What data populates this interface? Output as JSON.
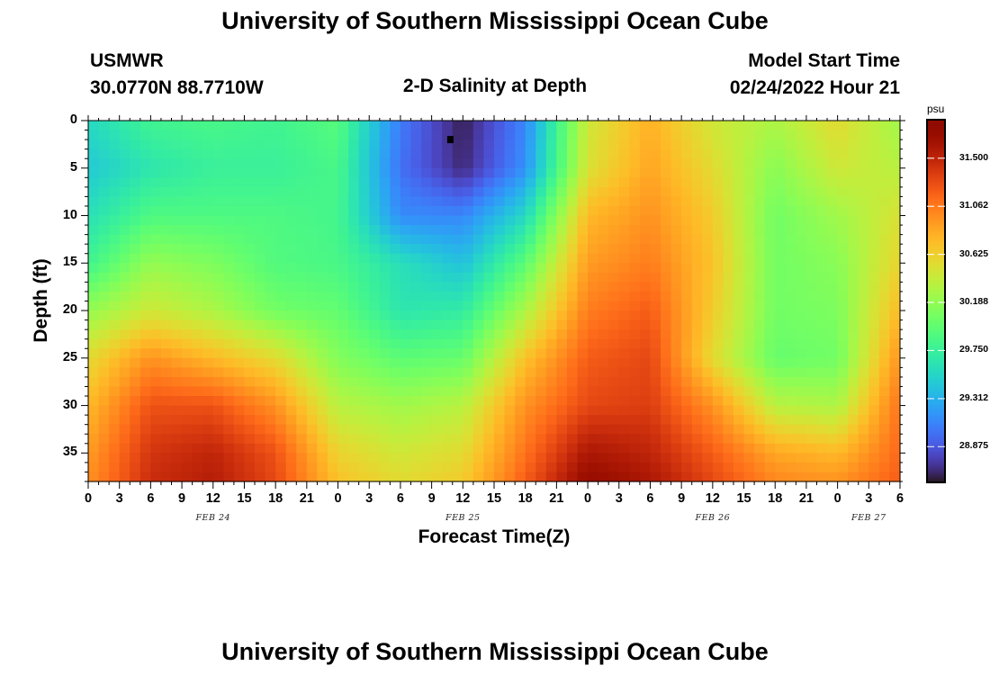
{
  "page": {
    "title": "University of Southern Mississippi Ocean Cube",
    "footer_title": "University of Southern Mississippi Ocean Cube",
    "station_id": "USMWR",
    "station_coords": "30.0770N  88.7710W",
    "plot_name": "2-D Salinity at Depth",
    "model_start_label": "Model Start Time",
    "model_start_value": "02/24/2022 Hour 21"
  },
  "chart_data": {
    "type": "heatmap",
    "title": "2-D Salinity at Depth",
    "xlabel": "Forecast Time(Z)",
    "ylabel": "Depth (ft)",
    "x_hours_per_step": 3,
    "x_tick_labels": [
      "0",
      "3",
      "6",
      "9",
      "12",
      "15",
      "18",
      "21",
      "0",
      "3",
      "6",
      "9",
      "12",
      "15",
      "18",
      "21",
      "0",
      "3",
      "6",
      "9",
      "12",
      "15",
      "18",
      "21",
      "0",
      "3",
      "6"
    ],
    "date_labels": [
      {
        "label": "FEB 24",
        "hour": 12
      },
      {
        "label": "FEB 25",
        "hour": 36
      },
      {
        "label": "FEB 26",
        "hour": 60
      },
      {
        "label": "FEB 27",
        "hour": 75
      }
    ],
    "xlim_hours": [
      0,
      78
    ],
    "y_tick_labels": [
      "0",
      "5",
      "10",
      "15",
      "20",
      "25",
      "30",
      "35"
    ],
    "ylim": [
      0,
      38
    ],
    "y_reversed": true,
    "colorbar": {
      "unit": "psu",
      "ticks": [
        "31.500",
        "31.062",
        "30.625",
        "30.188",
        "29.750",
        "29.312",
        "28.875"
      ],
      "range": [
        28.55,
        31.85
      ],
      "colormap": "turbo"
    },
    "marker": {
      "hour": 34.8,
      "depth": 2
    },
    "value_grid": {
      "hours": [
        0,
        6,
        12,
        18,
        24,
        30,
        36,
        42,
        48,
        54,
        60,
        66,
        72,
        78
      ],
      "depths": [
        0,
        5,
        10,
        15,
        20,
        25,
        30,
        35,
        38
      ],
      "values": [
        [
          29.55,
          29.8,
          29.85,
          29.8,
          29.92,
          29.05,
          28.6,
          29.1,
          30.45,
          30.8,
          30.45,
          30.3,
          30.55,
          30.25
        ],
        [
          29.45,
          29.65,
          29.75,
          29.75,
          29.85,
          29.0,
          28.65,
          29.15,
          30.5,
          30.85,
          30.55,
          30.15,
          30.45,
          30.35
        ],
        [
          29.6,
          29.88,
          29.88,
          29.88,
          29.82,
          29.12,
          29.1,
          29.55,
          30.75,
          30.95,
          30.65,
          30.05,
          30.25,
          30.5
        ],
        [
          29.8,
          30.2,
          30.1,
          29.9,
          29.85,
          29.6,
          29.4,
          29.95,
          30.9,
          31.05,
          30.7,
          30.05,
          30.15,
          30.6
        ],
        [
          30.2,
          30.45,
          30.3,
          30.05,
          29.98,
          29.65,
          29.7,
          30.3,
          31.05,
          31.2,
          30.65,
          30.05,
          30.1,
          30.75
        ],
        [
          30.55,
          30.95,
          30.75,
          30.55,
          30.12,
          29.95,
          30.0,
          30.7,
          31.2,
          31.3,
          30.55,
          30.0,
          30.05,
          30.95
        ],
        [
          30.75,
          31.25,
          31.25,
          30.95,
          30.35,
          30.25,
          30.35,
          30.95,
          31.3,
          31.35,
          30.95,
          30.35,
          30.3,
          31.1
        ],
        [
          30.9,
          31.4,
          31.5,
          31.25,
          30.6,
          30.45,
          30.55,
          31.1,
          31.6,
          31.5,
          31.2,
          30.85,
          30.75,
          31.15
        ],
        [
          30.95,
          31.45,
          31.55,
          31.3,
          30.7,
          30.55,
          30.65,
          31.2,
          31.75,
          31.6,
          31.3,
          31.0,
          30.95,
          31.2
        ]
      ]
    }
  }
}
